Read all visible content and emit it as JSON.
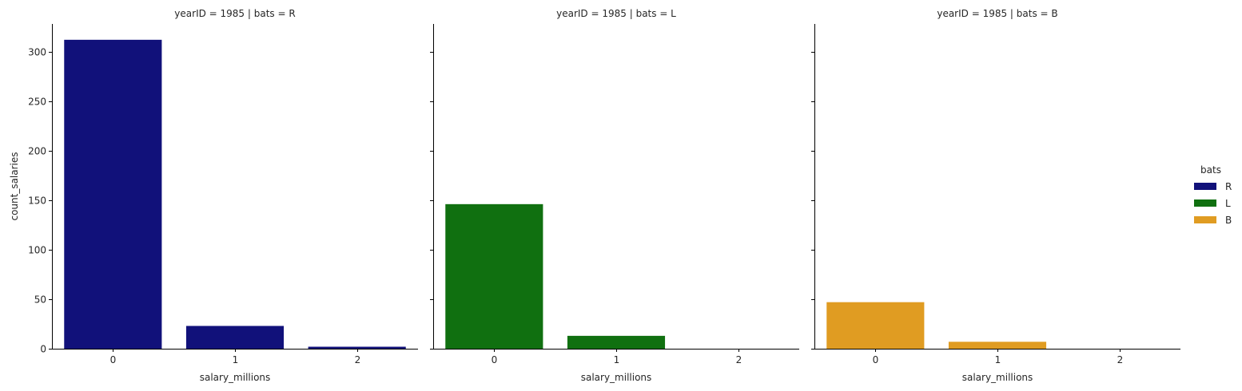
{
  "chart_data": {
    "type": "bar",
    "ylabel": "count_salaries",
    "xlabel": "salary_millions",
    "categories": [
      "0",
      "1",
      "2"
    ],
    "ylim": [
      0,
      328
    ],
    "yticks": [
      0,
      50,
      100,
      150,
      200,
      250,
      300
    ],
    "legend": {
      "title": "bats",
      "placement": "right",
      "entries": [
        {
          "label": "R",
          "color": "#11117a"
        },
        {
          "label": "L",
          "color": "#107010"
        },
        {
          "label": "B",
          "color": "#e09c22"
        }
      ]
    },
    "facets": [
      {
        "title": "yearID = 1985 | bats = R",
        "color": "#11117a",
        "values": [
          312,
          23,
          2
        ]
      },
      {
        "title": "yearID = 1985 | bats = L",
        "color": "#107010",
        "values": [
          146,
          13,
          0
        ]
      },
      {
        "title": "yearID = 1985 | bats = B",
        "color": "#e09c22",
        "values": [
          47,
          7,
          0
        ]
      }
    ]
  }
}
